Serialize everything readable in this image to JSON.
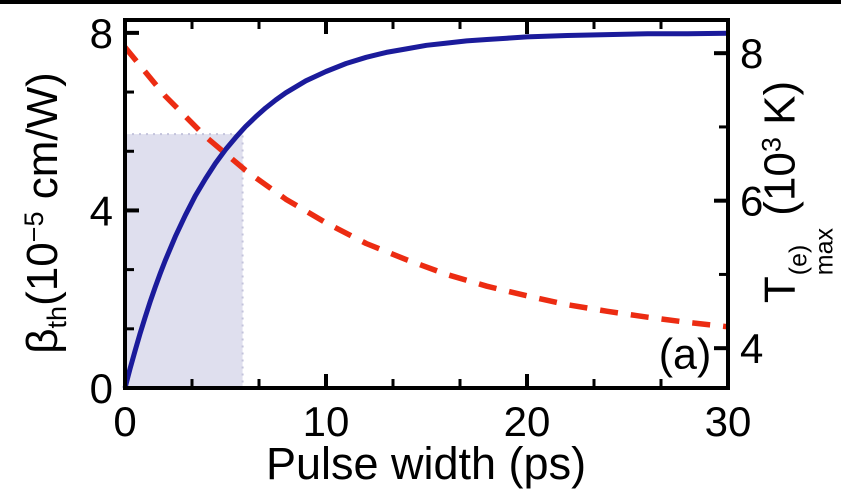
{
  "figure": {
    "panel_label": "(a)",
    "background_color": "#ffffff",
    "top_rule_color": "#000000"
  },
  "chart_data": {
    "type": "line",
    "title": "",
    "xlabel": "Pulse width (ps)",
    "ylabel_left": "β_th (10⁻⁵ cm/W)",
    "ylabel_right": "T_max^(e) (10³ K)",
    "ylabel_left_segments": [
      {
        "text": "β"
      },
      {
        "text": "th",
        "sub": true
      },
      {
        "text": "(10"
      },
      {
        "text": "−5",
        "sup": true
      },
      {
        "text": " cm/W)"
      }
    ],
    "ylabel_right_segments": [
      {
        "text": "T"
      },
      {
        "stack": {
          "sup": "(e)",
          "sub": "max"
        }
      },
      {
        "text": " (10"
      },
      {
        "text": "3",
        "sup": true
      },
      {
        "text": " K)"
      }
    ],
    "grid": false,
    "legend": null,
    "axes": {
      "x": {
        "min": 0,
        "max": 30,
        "major_ticks": [
          0,
          10,
          20,
          30
        ],
        "major_tick_labels": [
          "0",
          "10",
          "20",
          "30"
        ],
        "minor_ticks": [
          3.333,
          6.667,
          13.333,
          16.667,
          23.333,
          26.667
        ],
        "mirror_top": true
      },
      "y_left": {
        "min": 0,
        "max": 8.29,
        "major_ticks": [
          0,
          4,
          8
        ],
        "major_tick_labels": [
          "0",
          "4",
          "8"
        ],
        "minor_ticks": [
          1.333,
          2.667,
          5.333,
          6.667
        ]
      },
      "y_right": {
        "min": 3.46,
        "max": 8.45,
        "major_ticks": [
          4,
          6,
          8
        ],
        "major_tick_labels": [
          "4",
          "6",
          "8"
        ],
        "minor_ticks": [
          5,
          7
        ]
      }
    },
    "series": [
      {
        "name": "beta-th-threshold",
        "axis": "left",
        "color": "#1b1b9b",
        "line_style": "solid",
        "x": [
          0,
          0.25,
          0.5,
          0.75,
          1,
          1.25,
          1.5,
          1.75,
          2,
          2.5,
          3,
          3.5,
          4,
          4.5,
          5,
          5.5,
          6,
          6.5,
          7,
          7.5,
          8,
          9,
          10,
          11,
          12,
          13,
          14,
          15,
          16,
          17,
          18,
          19,
          20,
          22,
          24,
          26,
          28,
          30
        ],
        "y": [
          0,
          0.43,
          0.84,
          1.23,
          1.59,
          1.94,
          2.27,
          2.58,
          2.87,
          3.41,
          3.89,
          4.33,
          4.71,
          5.06,
          5.37,
          5.64,
          5.89,
          6.11,
          6.31,
          6.49,
          6.65,
          6.92,
          7.13,
          7.31,
          7.45,
          7.56,
          7.64,
          7.72,
          7.77,
          7.82,
          7.85,
          7.88,
          7.91,
          7.94,
          7.96,
          7.98,
          7.98,
          7.99
        ]
      },
      {
        "name": "electron-temperature-max",
        "axis": "right",
        "color": "#ec2c12",
        "line_style": "dashed",
        "x": [
          0,
          2,
          4,
          6,
          8,
          10,
          12,
          14,
          16,
          18,
          20,
          22,
          24,
          26,
          28,
          30
        ],
        "y": [
          8.08,
          7.42,
          6.87,
          6.41,
          6.02,
          5.7,
          5.42,
          5.2,
          5.0,
          4.84,
          4.71,
          4.59,
          4.5,
          4.42,
          4.35,
          4.29
        ]
      }
    ],
    "shaded_region": {
      "axis": "left",
      "x0": 0,
      "x1": 5.85,
      "y0": 0,
      "y1": 5.72,
      "fill": "#dfdfee",
      "edge_color": "#c3c3dc"
    }
  }
}
